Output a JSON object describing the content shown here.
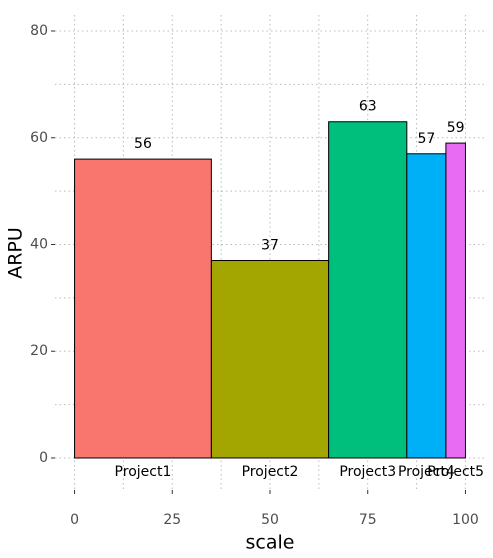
{
  "chart_data": {
    "type": "bar",
    "x_label": "scale",
    "y_label": "ARPU",
    "categories": [
      "Project1",
      "Project2",
      "Project3",
      "Project4",
      "Project5"
    ],
    "bins": [
      0,
      35,
      65,
      85,
      95,
      100
    ],
    "values": [
      56,
      37,
      63,
      57,
      59
    ],
    "colors": [
      "#F8766D",
      "#A3A500",
      "#00BF7D",
      "#00B0F6",
      "#E76BF3"
    ],
    "xlim": [
      -5,
      105
    ],
    "ylim": [
      -6,
      83
    ],
    "xticks": [
      0,
      25,
      50,
      75,
      100
    ],
    "yticks": [
      0,
      20,
      40,
      60,
      80
    ],
    "grid": true
  }
}
